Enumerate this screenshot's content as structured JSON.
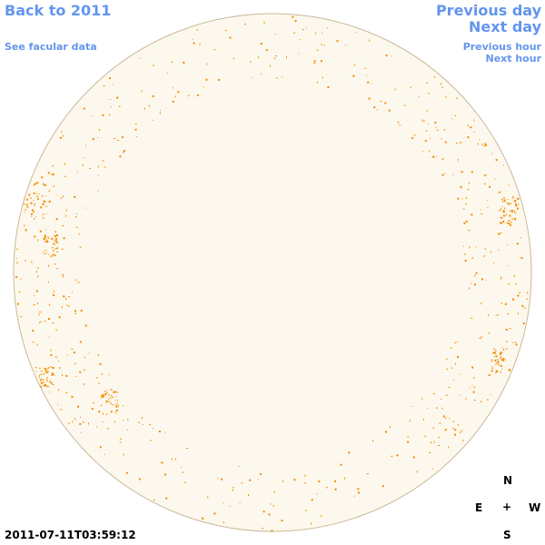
{
  "links": {
    "back": "Back to 2011",
    "facular": "See facular data",
    "previous_day": "Previous day",
    "next_day": "Next day",
    "previous_hour": "Previous hour",
    "next_hour": "Next hour"
  },
  "timestamp": "2011-07-11T03:59:12",
  "compass": {
    "north": "N",
    "east": "E",
    "center": "+",
    "west": "W",
    "south": "S"
  }
}
